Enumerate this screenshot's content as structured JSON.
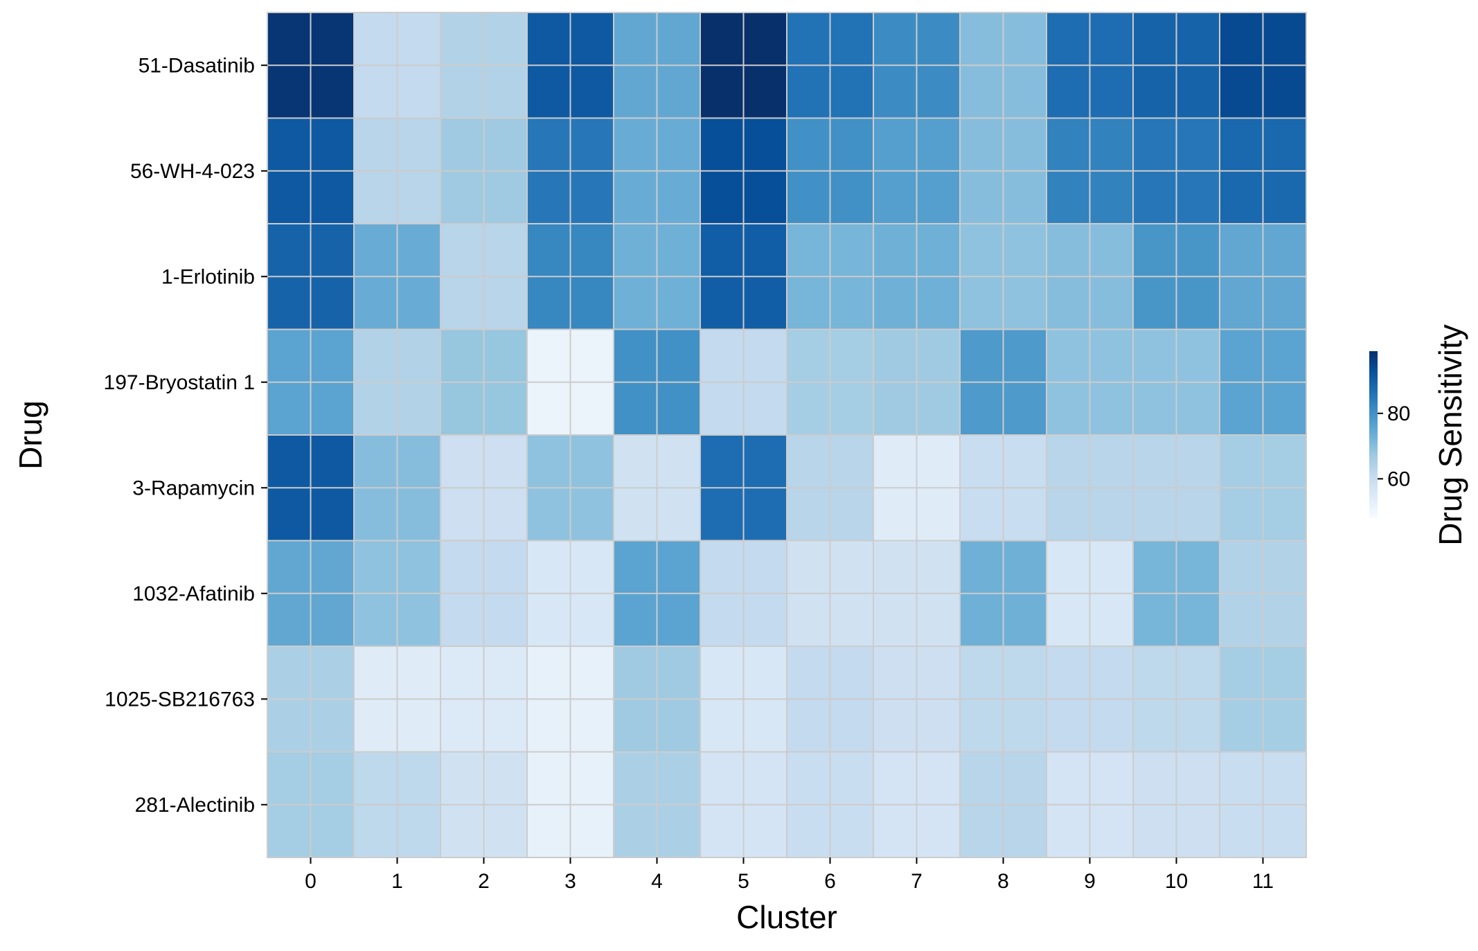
{
  "chart_data": {
    "type": "heatmap",
    "title": "",
    "xlabel": "Cluster",
    "ylabel": "Drug",
    "x_categories": [
      "0",
      "1",
      "2",
      "3",
      "4",
      "5",
      "6",
      "7",
      "8",
      "9",
      "10",
      "11"
    ],
    "y_categories": [
      "51-Dasatinib",
      "56-WH-4-023",
      "1-Erlotinib",
      "197-Bryostatin 1",
      "3-Rapamycin",
      "1032-Afatinib",
      "1025-SB216763",
      "281-Alectinib"
    ],
    "values": [
      [
        98,
        61,
        64,
        91,
        75,
        99,
        86,
        81,
        70,
        87,
        89,
        94
      ],
      [
        91,
        63,
        67,
        85,
        74,
        93,
        80,
        77,
        70,
        83,
        85,
        88
      ],
      [
        89,
        74,
        63,
        82,
        73,
        90,
        72,
        73,
        69,
        70,
        79,
        75
      ],
      [
        76,
        64,
        68,
        51,
        80,
        61,
        66,
        67,
        78,
        69,
        69,
        76
      ],
      [
        91,
        70,
        59,
        69,
        58,
        87,
        63,
        54,
        60,
        63,
        63,
        66
      ],
      [
        75,
        69,
        61,
        56,
        76,
        61,
        58,
        58,
        73,
        56,
        72,
        64
      ],
      [
        65,
        54,
        55,
        52,
        67,
        56,
        61,
        59,
        62,
        61,
        62,
        66
      ],
      [
        66,
        62,
        58,
        52,
        65,
        57,
        60,
        57,
        63,
        57,
        59,
        60
      ]
    ],
    "colormap": "Blues",
    "vmin": 48,
    "vmax": 99,
    "grid": true,
    "colorbar": {
      "label": "Drug Sensitivity",
      "ticks": [
        60,
        80
      ],
      "tick_labels": [
        "60",
        "80"
      ]
    }
  },
  "colors": {
    "low": "#f7fbff",
    "high": "#08306b",
    "cell_border": "#cccccc",
    "frame": "#cccccc"
  }
}
